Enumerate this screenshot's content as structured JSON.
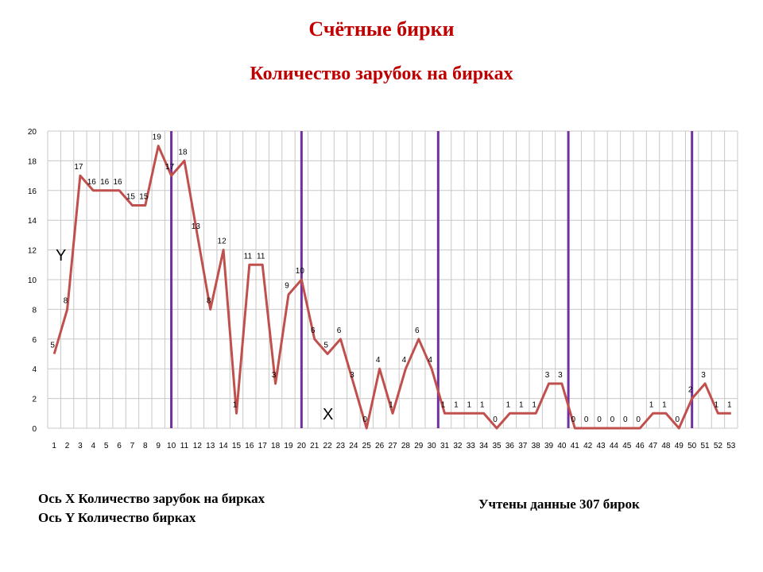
{
  "title": "Счётные бирки",
  "subtitle": "Количество зарубок на бирках",
  "notes": {
    "x_axis": "Ось X Количество  зарубок на бирках",
    "y_axis": "Ось Y Количество  бирках",
    "count": "Учтены данные 307 бирок"
  },
  "chart_data": {
    "type": "line",
    "title": "",
    "xlabel": "X",
    "ylabel": "Y",
    "x": [
      1,
      2,
      3,
      4,
      5,
      6,
      7,
      8,
      9,
      10,
      11,
      12,
      13,
      14,
      15,
      16,
      17,
      18,
      19,
      20,
      21,
      22,
      23,
      24,
      25,
      26,
      27,
      28,
      29,
      30,
      31,
      32,
      33,
      34,
      35,
      36,
      37,
      38,
      39,
      40,
      41,
      42,
      43,
      44,
      45,
      46,
      47,
      48,
      49,
      50,
      51,
      52,
      53
    ],
    "series": [
      {
        "values": [
          5,
          8,
          17,
          16,
          16,
          16,
          15,
          15,
          19,
          17,
          18,
          13,
          8,
          12,
          1,
          11,
          11,
          3,
          9,
          10,
          6,
          5,
          6,
          3,
          0,
          4,
          1,
          4,
          6,
          4,
          1,
          1,
          1,
          1,
          0,
          1,
          1,
          1,
          3,
          3,
          0,
          0,
          0,
          0,
          0,
          0,
          1,
          1,
          0,
          2,
          3,
          1,
          1
        ],
        "color": "#c0504d"
      }
    ],
    "ylim": [
      0,
      20
    ],
    "yticks": [
      0,
      2,
      4,
      6,
      8,
      10,
      12,
      14,
      16,
      18,
      20
    ],
    "grid": true,
    "vertical_markers": [
      10,
      20,
      30.5,
      40.5,
      50
    ],
    "marker_color": "#7030a0",
    "legend": "none"
  }
}
